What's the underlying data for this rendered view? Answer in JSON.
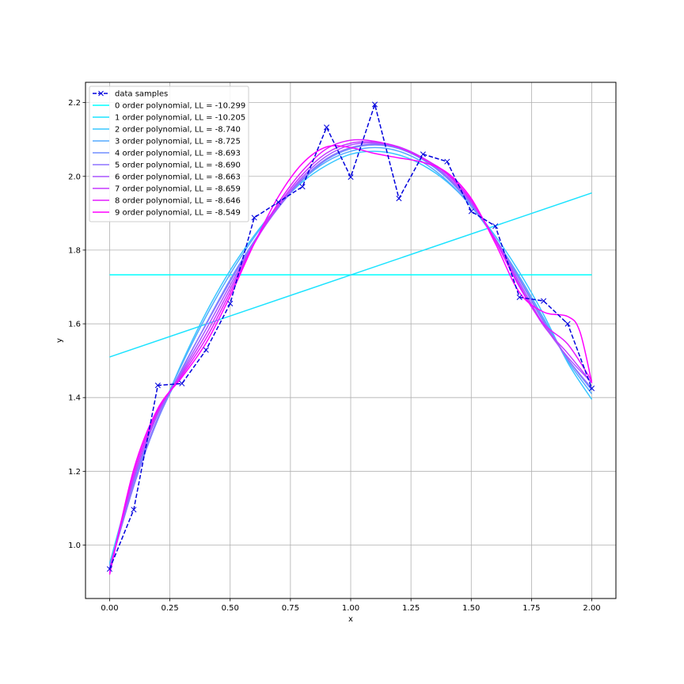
{
  "chart_data": {
    "type": "line",
    "title": "",
    "xlabel": "x",
    "ylabel": "y",
    "xlim": [
      -0.1,
      2.1
    ],
    "ylim": [
      0.855,
      2.255
    ],
    "xticks": [
      0.0,
      0.25,
      0.5,
      0.75,
      1.0,
      1.25,
      1.5,
      1.75,
      2.0
    ],
    "xtick_labels": [
      "0.00",
      "0.25",
      "0.50",
      "0.75",
      "1.00",
      "1.25",
      "1.50",
      "1.75",
      "2.00"
    ],
    "yticks": [
      1.0,
      1.2,
      1.4,
      1.6,
      1.8,
      2.0,
      2.2
    ],
    "ytick_labels": [
      "1.0",
      "1.2",
      "1.4",
      "1.6",
      "1.8",
      "2.0",
      "2.2"
    ],
    "grid": true,
    "legend_position": "upper-left",
    "samples": {
      "name": "data samples",
      "color": "#0000dd",
      "x": [
        0.0,
        0.1,
        0.2,
        0.3,
        0.4,
        0.5,
        0.6,
        0.7,
        0.8,
        0.9,
        1.0,
        1.1,
        1.2,
        1.3,
        1.4,
        1.5,
        1.6,
        1.7,
        1.8,
        1.9,
        2.0
      ],
      "y": [
        0.935,
        1.096,
        1.433,
        1.438,
        1.529,
        1.655,
        1.888,
        1.93,
        1.972,
        2.133,
        1.998,
        2.195,
        1.94,
        2.06,
        2.04,
        1.905,
        1.865,
        1.672,
        1.662,
        1.6,
        1.425
      ]
    },
    "series": [
      {
        "name": "0 order polynomial, LL = -10.299",
        "color": "#00ffff",
        "x": [
          0.0,
          2.0
        ],
        "y": [
          1.733,
          1.733
        ]
      },
      {
        "name": "1 order polynomial, LL = -10.205",
        "color": "#1ce3ff",
        "x": [
          0.0,
          2.0
        ],
        "y": [
          1.51,
          1.955
        ]
      },
      {
        "name": "2 order polynomial, LL = -8.740",
        "color": "#38c7ff",
        "x": [
          0,
          0.1,
          0.2,
          0.3,
          0.4,
          0.5,
          0.6,
          0.7,
          0.8,
          0.9,
          1.0,
          1.1,
          1.2,
          1.3,
          1.4,
          1.5,
          1.6,
          1.7,
          1.8,
          1.9,
          2.0
        ],
        "y": [
          0.95,
          1.18,
          1.34,
          1.495,
          1.63,
          1.745,
          1.84,
          1.92,
          1.985,
          2.03,
          2.06,
          2.068,
          2.058,
          2.03,
          1.985,
          1.92,
          1.838,
          1.74,
          1.625,
          1.495,
          1.395
        ]
      },
      {
        "name": "3 order polynomial, LL = -8.725",
        "color": "#55aaff",
        "x": [
          0,
          0.1,
          0.2,
          0.3,
          0.4,
          0.5,
          0.6,
          0.7,
          0.8,
          0.9,
          1.0,
          1.1,
          1.2,
          1.3,
          1.4,
          1.5,
          1.6,
          1.7,
          1.8,
          1.9,
          2.0
        ],
        "y": [
          0.945,
          1.17,
          1.345,
          1.49,
          1.62,
          1.735,
          1.835,
          1.92,
          1.99,
          2.04,
          2.068,
          2.078,
          2.068,
          2.038,
          1.988,
          1.918,
          1.83,
          1.728,
          1.615,
          1.5,
          1.41
        ]
      },
      {
        "name": "4 order polynomial, LL = -8.693",
        "color": "#718eff",
        "x": [
          0,
          0.1,
          0.2,
          0.3,
          0.4,
          0.5,
          0.6,
          0.7,
          0.8,
          0.9,
          1.0,
          1.1,
          1.2,
          1.3,
          1.4,
          1.5,
          1.6,
          1.7,
          1.8,
          1.9,
          2.0
        ],
        "y": [
          0.94,
          1.16,
          1.34,
          1.475,
          1.6,
          1.72,
          1.825,
          1.915,
          1.99,
          2.045,
          2.075,
          2.085,
          2.075,
          2.045,
          1.995,
          1.922,
          1.83,
          1.722,
          1.61,
          1.505,
          1.42
        ]
      },
      {
        "name": "5 order polynomial, LL = -8.690",
        "color": "#8d72ff",
        "x": [
          0,
          0.1,
          0.2,
          0.3,
          0.4,
          0.5,
          0.6,
          0.7,
          0.8,
          0.9,
          1.0,
          1.1,
          1.2,
          1.3,
          1.4,
          1.5,
          1.6,
          1.7,
          1.8,
          1.9,
          2.0
        ],
        "y": [
          0.937,
          1.16,
          1.345,
          1.478,
          1.598,
          1.715,
          1.822,
          1.915,
          1.993,
          2.048,
          2.078,
          2.087,
          2.078,
          2.048,
          1.998,
          1.925,
          1.831,
          1.72,
          1.605,
          1.505,
          1.425
        ]
      },
      {
        "name": "6 order polynomial, LL = -8.663",
        "color": "#aa55ff",
        "x": [
          0,
          0.1,
          0.2,
          0.3,
          0.4,
          0.5,
          0.6,
          0.7,
          0.8,
          0.9,
          1.0,
          1.1,
          1.2,
          1.3,
          1.4,
          1.5,
          1.6,
          1.7,
          1.8,
          1.9,
          2.0
        ],
        "y": [
          0.935,
          1.175,
          1.355,
          1.47,
          1.585,
          1.705,
          1.82,
          1.918,
          1.998,
          2.055,
          2.085,
          2.09,
          2.078,
          2.048,
          2.0,
          1.928,
          1.83,
          1.712,
          1.598,
          1.51,
          1.44
        ]
      },
      {
        "name": "7 order polynomial, LL = -8.659",
        "color": "#c639ff",
        "x": [
          0,
          0.1,
          0.2,
          0.3,
          0.4,
          0.5,
          0.6,
          0.7,
          0.8,
          0.9,
          1.0,
          1.1,
          1.2,
          1.3,
          1.4,
          1.5,
          1.6,
          1.7,
          1.8,
          1.9,
          2.0
        ],
        "y": [
          0.93,
          1.185,
          1.36,
          1.465,
          1.572,
          1.695,
          1.818,
          1.922,
          2.005,
          2.063,
          2.09,
          2.093,
          2.08,
          2.05,
          2.005,
          1.932,
          1.828,
          1.705,
          1.595,
          1.52,
          1.44
        ]
      },
      {
        "name": "8 order polynomial, LL = -8.646",
        "color": "#e31cff",
        "x": [
          0,
          0.1,
          0.2,
          0.3,
          0.4,
          0.5,
          0.6,
          0.7,
          0.8,
          0.9,
          1.0,
          1.1,
          1.2,
          1.3,
          1.4,
          1.5,
          1.6,
          1.7,
          1.8,
          1.9,
          2.0
        ],
        "y": [
          0.925,
          1.195,
          1.365,
          1.46,
          1.56,
          1.685,
          1.818,
          1.928,
          2.015,
          2.075,
          2.098,
          2.095,
          2.078,
          2.048,
          2.008,
          1.935,
          1.825,
          1.7,
          1.6,
          1.545,
          1.445
        ]
      },
      {
        "name": "9 order polynomial, LL = -8.549",
        "color": "#ff00ff",
        "x": [
          0,
          0.1,
          0.2,
          0.3,
          0.4,
          0.5,
          0.6,
          0.7,
          0.8,
          0.9,
          1.0,
          1.1,
          1.2,
          1.3,
          1.4,
          1.5,
          1.6,
          1.7,
          1.8,
          1.9,
          1.95,
          2.0
        ],
        "y": [
          0.92,
          1.205,
          1.37,
          1.455,
          1.548,
          1.675,
          1.818,
          1.945,
          2.035,
          2.08,
          2.078,
          2.062,
          2.05,
          2.038,
          2.01,
          1.94,
          1.818,
          1.685,
          1.632,
          1.62,
          1.58,
          1.44
        ]
      }
    ]
  }
}
